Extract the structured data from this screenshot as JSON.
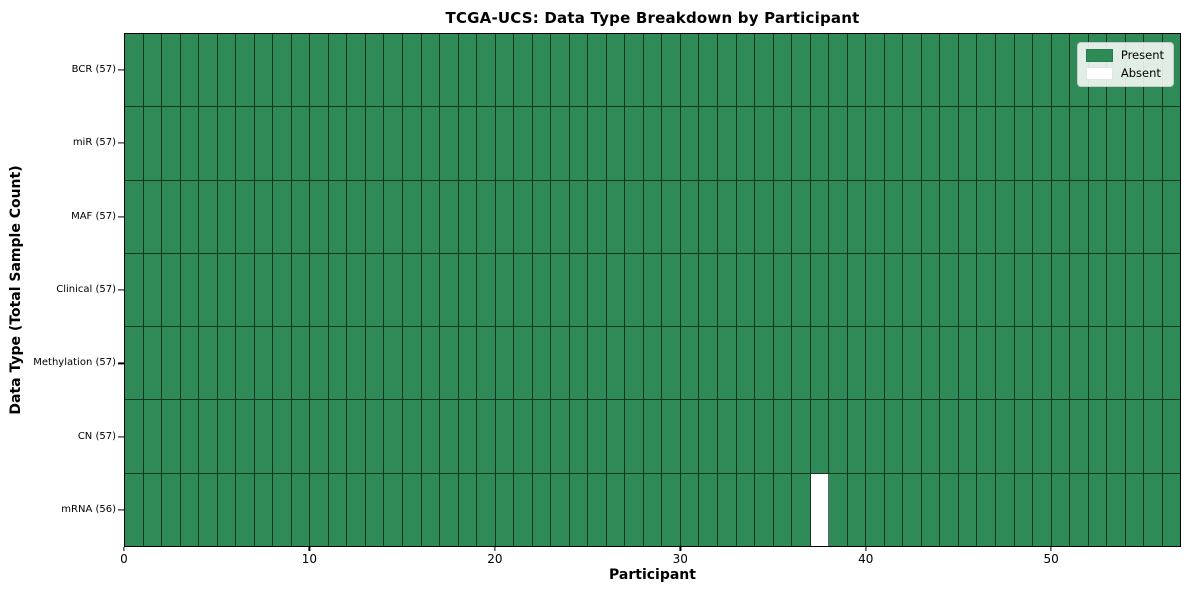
{
  "title": "TCGA-UCS: Data Type Breakdown by Participant",
  "chart_data": {
    "type": "heatmap",
    "title": "TCGA-UCS: Data Type Breakdown by Participant",
    "xlabel": "Participant",
    "ylabel": "Data Type (Total Sample Count)",
    "x_ticks": [
      0,
      10,
      20,
      30,
      40,
      50
    ],
    "x_range": [
      0,
      57
    ],
    "n_participants": 57,
    "grid": "cell-edges",
    "legend_position": "upper right",
    "rows": [
      {
        "label": "BCR (57)",
        "data_type": "BCR",
        "total": 57,
        "absent_participants": []
      },
      {
        "label": "miR (57)",
        "data_type": "miR",
        "total": 57,
        "absent_participants": []
      },
      {
        "label": "MAF (57)",
        "data_type": "MAF",
        "total": 57,
        "absent_participants": []
      },
      {
        "label": "Clinical (57)",
        "data_type": "Clinical",
        "total": 57,
        "absent_participants": []
      },
      {
        "label": "Methylation (57)",
        "data_type": "Methylation",
        "total": 57,
        "absent_participants": []
      },
      {
        "label": "CN (57)",
        "data_type": "CN",
        "total": 57,
        "absent_participants": []
      },
      {
        "label": "mRNA (56)",
        "data_type": "mRNA",
        "total": 56,
        "absent_participants": [
          37
        ]
      }
    ],
    "legend": [
      {
        "label": "Present",
        "color": "#2e8b57"
      },
      {
        "label": "Absent",
        "color": "#ffffff"
      }
    ],
    "colors": {
      "present": "#2e8b57",
      "absent": "#ffffff",
      "cell_edge": "rgba(0,0,0,0.62)",
      "spine": "#000000",
      "legend_border": "#c9c9c9"
    }
  }
}
